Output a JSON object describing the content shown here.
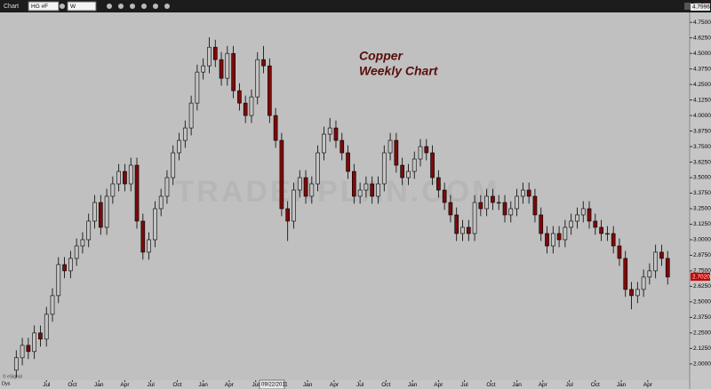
{
  "toolbar": {
    "title": "Chart",
    "symbol": "HG #F",
    "interval": "W"
  },
  "chart_data": {
    "type": "candlestick",
    "title_lines": [
      "Copper",
      "Weekly Chart"
    ],
    "watermark": "TRADERPLAN.COM",
    "corner_label": "Dys",
    "credit": "© eSignal",
    "cursor_label": "09/22/2011",
    "high_label": 4.7996,
    "last_price": {
      "value": 2.702,
      "label": "2.7020"
    },
    "up_color": "#c4c4c4",
    "down_color": "#7b0a0a",
    "wick_color": "#000000",
    "xlim": [
      -2.4,
      111.5
    ],
    "xticks": [
      {
        "value": 5.0,
        "label": "Jul"
      },
      {
        "value": 9.3,
        "label": "Oct"
      },
      {
        "value": 13.7,
        "label": "Jan"
      },
      {
        "value": 18.0,
        "label": "Apr"
      },
      {
        "value": 22.3,
        "label": "Jul"
      },
      {
        "value": 26.7,
        "label": "Oct"
      },
      {
        "value": 31.0,
        "label": "Jan"
      },
      {
        "value": 35.3,
        "label": "Apr"
      },
      {
        "value": 39.7,
        "label": "Jul"
      },
      {
        "value": 48.3,
        "label": "Jan"
      },
      {
        "value": 52.7,
        "label": "Apr"
      },
      {
        "value": 57.0,
        "label": "Jul"
      },
      {
        "value": 61.3,
        "label": "Oct"
      },
      {
        "value": 65.7,
        "label": "Jan"
      },
      {
        "value": 70.0,
        "label": "Apr"
      },
      {
        "value": 74.3,
        "label": "Jul"
      },
      {
        "value": 78.7,
        "label": "Oct"
      },
      {
        "value": 83.0,
        "label": "Jan"
      },
      {
        "value": 87.3,
        "label": "Apr"
      },
      {
        "value": 91.7,
        "label": "Jul"
      },
      {
        "value": 96.0,
        "label": "Oct"
      },
      {
        "value": 100.3,
        "label": "Jan"
      },
      {
        "value": 104.7,
        "label": "Apr"
      }
    ],
    "ylim": [
      1.87,
      4.83
    ],
    "yticks": [
      {
        "value": 2,
        "label": "2.0000"
      },
      {
        "value": 2.125,
        "label": "2.1250"
      },
      {
        "value": 2.25,
        "label": "2.2500"
      },
      {
        "value": 2.375,
        "label": "2.3750"
      },
      {
        "value": 2.5,
        "label": "2.5000"
      },
      {
        "value": 2.625,
        "label": "2.6250"
      },
      {
        "value": 2.75,
        "label": "2.7500"
      },
      {
        "value": 2.875,
        "label": "2.8750"
      },
      {
        "value": 3,
        "label": "3.0000"
      },
      {
        "value": 3.125,
        "label": "3.1250"
      },
      {
        "value": 3.25,
        "label": "3.2500"
      },
      {
        "value": 3.375,
        "label": "3.3750"
      },
      {
        "value": 3.5,
        "label": "3.5000"
      },
      {
        "value": 3.625,
        "label": "3.6250"
      },
      {
        "value": 3.75,
        "label": "3.7500"
      },
      {
        "value": 3.875,
        "label": "3.8750"
      },
      {
        "value": 4,
        "label": "4.0000"
      },
      {
        "value": 4.125,
        "label": "4.1250"
      },
      {
        "value": 4.25,
        "label": "4.2500"
      },
      {
        "value": 4.375,
        "label": "4.3750"
      },
      {
        "value": 4.5,
        "label": "4.5000"
      },
      {
        "value": 4.625,
        "label": "4.6250"
      },
      {
        "value": 4.75,
        "label": "4.7500"
      }
    ],
    "open": [
      1.95,
      2.05,
      2.15,
      2.1,
      2.25,
      2.2,
      2.4,
      2.55,
      2.8,
      2.75,
      2.85,
      2.95,
      3.0,
      3.15,
      3.3,
      3.1,
      3.35,
      3.45,
      3.55,
      3.45,
      3.6,
      3.15,
      2.9,
      3.0,
      3.25,
      3.35,
      3.5,
      3.7,
      3.8,
      3.9,
      4.1,
      4.35,
      4.4,
      4.55,
      4.45,
      4.3,
      4.5,
      4.2,
      4.1,
      4.0,
      4.15,
      4.45,
      4.4,
      4.0,
      3.8,
      3.25,
      3.15,
      3.4,
      3.5,
      3.35,
      3.45,
      3.7,
      3.85,
      3.9,
      3.8,
      3.7,
      3.55,
      3.35,
      3.4,
      3.45,
      3.35,
      3.45,
      3.7,
      3.8,
      3.6,
      3.5,
      3.55,
      3.65,
      3.75,
      3.7,
      3.5,
      3.4,
      3.3,
      3.2,
      3.05,
      3.1,
      3.05,
      3.3,
      3.25,
      3.35,
      3.3,
      3.3,
      3.2,
      3.25,
      3.35,
      3.4,
      3.35,
      3.2,
      3.05,
      2.95,
      3.05,
      3.0,
      3.1,
      3.15,
      3.2,
      3.25,
      3.15,
      3.1,
      3.05,
      3.05,
      2.95,
      2.85,
      2.6,
      2.55,
      2.6,
      2.7,
      2.75,
      2.9,
      2.85
    ],
    "high": [
      2.11,
      2.21,
      2.21,
      2.31,
      2.31,
      2.46,
      2.61,
      2.86,
      2.86,
      2.91,
      3.01,
      3.06,
      3.21,
      3.36,
      3.36,
      3.41,
      3.51,
      3.61,
      3.61,
      3.66,
      3.66,
      3.21,
      3.06,
      3.31,
      3.41,
      3.56,
      3.76,
      3.86,
      3.96,
      4.16,
      4.41,
      4.46,
      4.63,
      4.61,
      4.51,
      4.56,
      4.56,
      4.26,
      4.16,
      4.21,
      4.51,
      4.56,
      4.46,
      4.06,
      3.86,
      3.31,
      3.46,
      3.56,
      3.56,
      3.51,
      3.76,
      3.91,
      3.98,
      3.96,
      3.86,
      3.76,
      3.61,
      3.46,
      3.51,
      3.51,
      3.51,
      3.76,
      3.86,
      3.86,
      3.66,
      3.61,
      3.71,
      3.81,
      3.81,
      3.76,
      3.56,
      3.46,
      3.36,
      3.26,
      3.16,
      3.16,
      3.36,
      3.36,
      3.41,
      3.41,
      3.36,
      3.36,
      3.31,
      3.41,
      3.46,
      3.46,
      3.41,
      3.26,
      3.11,
      3.11,
      3.11,
      3.16,
      3.21,
      3.26,
      3.31,
      3.31,
      3.21,
      3.16,
      3.11,
      3.11,
      3.01,
      2.91,
      2.66,
      2.66,
      2.76,
      2.81,
      2.96,
      2.96,
      2.91
    ],
    "low": [
      1.89,
      1.99,
      2.04,
      2.04,
      2.14,
      2.14,
      2.34,
      2.49,
      2.69,
      2.69,
      2.79,
      2.89,
      2.94,
      3.09,
      3.04,
      3.04,
      3.29,
      3.39,
      3.39,
      3.39,
      3.09,
      2.84,
      2.84,
      2.94,
      3.19,
      3.29,
      3.44,
      3.64,
      3.74,
      3.84,
      4.04,
      4.29,
      4.34,
      4.39,
      4.24,
      4.24,
      4.14,
      4.04,
      3.94,
      3.94,
      4.09,
      4.34,
      3.94,
      3.74,
      3.19,
      2.99,
      3.09,
      3.34,
      3.29,
      3.29,
      3.39,
      3.64,
      3.79,
      3.74,
      3.64,
      3.49,
      3.29,
      3.29,
      3.34,
      3.29,
      3.29,
      3.39,
      3.64,
      3.54,
      3.44,
      3.44,
      3.49,
      3.59,
      3.64,
      3.44,
      3.34,
      3.24,
      3.14,
      2.99,
      2.99,
      2.99,
      2.99,
      3.19,
      3.19,
      3.24,
      3.24,
      3.14,
      3.14,
      3.19,
      3.29,
      3.29,
      3.14,
      2.99,
      2.89,
      2.89,
      2.94,
      2.94,
      3.04,
      3.09,
      3.14,
      3.09,
      3.04,
      2.99,
      2.99,
      2.89,
      2.79,
      2.54,
      2.44,
      2.49,
      2.54,
      2.64,
      2.69,
      2.79,
      2.64
    ],
    "close": [
      2.05,
      2.15,
      2.1,
      2.25,
      2.2,
      2.4,
      2.55,
      2.8,
      2.75,
      2.85,
      2.95,
      3.0,
      3.15,
      3.3,
      3.1,
      3.35,
      3.45,
      3.55,
      3.45,
      3.6,
      3.15,
      2.9,
      3.0,
      3.25,
      3.35,
      3.5,
      3.7,
      3.8,
      3.9,
      4.1,
      4.35,
      4.4,
      4.55,
      4.45,
      4.3,
      4.5,
      4.2,
      4.1,
      4.0,
      4.15,
      4.45,
      4.4,
      4.0,
      3.8,
      3.25,
      3.15,
      3.4,
      3.5,
      3.35,
      3.45,
      3.7,
      3.85,
      3.9,
      3.8,
      3.7,
      3.55,
      3.35,
      3.4,
      3.45,
      3.35,
      3.45,
      3.7,
      3.8,
      3.6,
      3.5,
      3.55,
      3.65,
      3.75,
      3.7,
      3.5,
      3.4,
      3.3,
      3.2,
      3.05,
      3.1,
      3.05,
      3.3,
      3.25,
      3.35,
      3.3,
      3.3,
      3.2,
      3.25,
      3.35,
      3.4,
      3.35,
      3.2,
      3.05,
      2.95,
      3.05,
      3.0,
      3.1,
      3.15,
      3.2,
      3.25,
      3.15,
      3.1,
      3.05,
      3.05,
      2.95,
      2.85,
      2.6,
      2.55,
      2.6,
      2.7,
      2.75,
      2.9,
      2.85,
      2.7
    ]
  }
}
